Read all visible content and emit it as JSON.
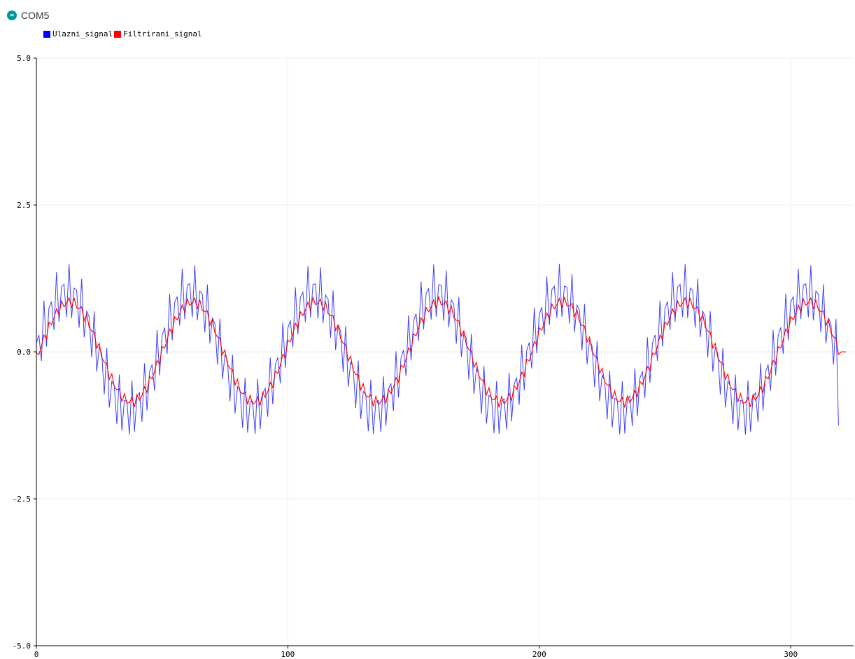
{
  "window": {
    "title": "COM5",
    "icon": "arduino-infinity-icon"
  },
  "chart_data": {
    "type": "line",
    "title": "",
    "xlabel": "",
    "ylabel": "",
    "xlim": [
      0,
      325
    ],
    "ylim": [
      -5.0,
      5.0
    ],
    "xticks": [
      0,
      100,
      200,
      300
    ],
    "yticks": [
      -5.0,
      -2.5,
      0.0,
      2.5,
      5.0
    ],
    "ytick_labels": [
      "-5.0",
      "-2.5",
      "0.0",
      "2.5",
      "5.0"
    ],
    "xtick_labels": [
      "0",
      "100",
      "200",
      "300"
    ],
    "grid": true,
    "legend_position": "top-left",
    "series": [
      {
        "name": "Ulazni_signal",
        "color": "#0000ff",
        "description_points": "x from 0 to 319, y = sin(2*pi*x/49) + 0.5*sin(2*pi*x*0.4)",
        "x_range": [
          0,
          319
        ],
        "base_amplitude": 1.0,
        "base_period": 49,
        "noise_amplitude": 0.5,
        "noise_period": 2.5
      },
      {
        "name": "Filtrirani_signal",
        "color": "#ff0000",
        "x_range": [
          0,
          319
        ],
        "base_amplitude": 0.85,
        "base_period": 49,
        "ripple_amplitude": 0.1,
        "ripple_period": 2.5
      }
    ]
  }
}
